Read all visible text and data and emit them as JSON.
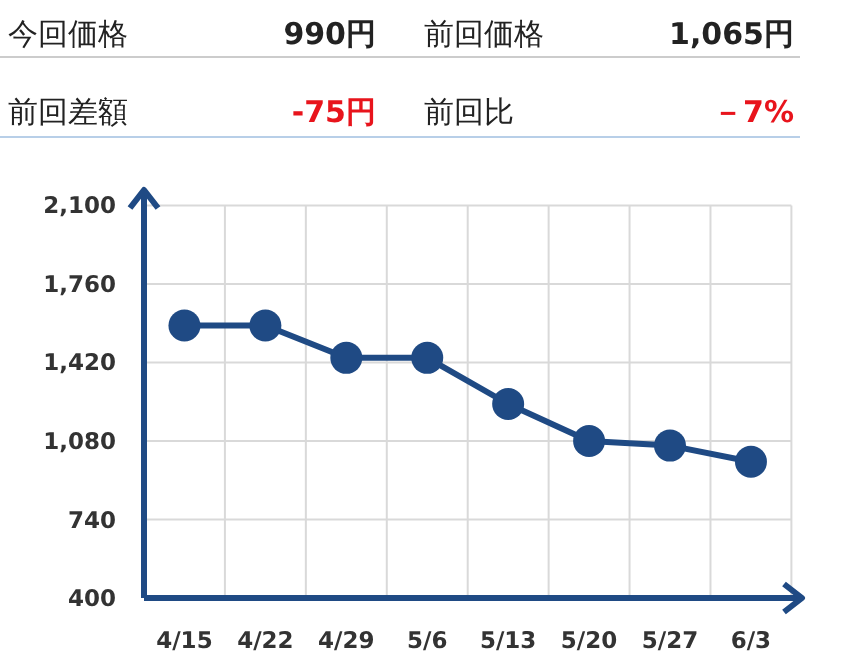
{
  "chart_data": {
    "type": "line",
    "categories": [
      "4/15",
      "4/22",
      "4/29",
      "5/6",
      "5/13",
      "5/20",
      "5/27",
      "6/3"
    ],
    "series": [
      {
        "color": "#1f4a84",
        "values": [
          1580,
          1580,
          1440,
          1440,
          1240,
          1080,
          1060,
          990
        ]
      }
    ],
    "ylim": [
      400,
      2100
    ],
    "yticks": [
      400,
      740,
      {
        "value": 1080,
        "label": "1,080"
      },
      {
        "value": 1420,
        "label": "1,420"
      },
      {
        "value": 1760,
        "label": "1,760"
      },
      {
        "value": 2100,
        "label": "2,100"
      }
    ],
    "grid": true,
    "marker": "circle",
    "line_style": "solid",
    "annotations": [
      "今回価格",
      "990円",
      "前回価格",
      "1,065円",
      "前回差額",
      "-75円",
      "前回比",
      "－7%"
    ]
  }
}
